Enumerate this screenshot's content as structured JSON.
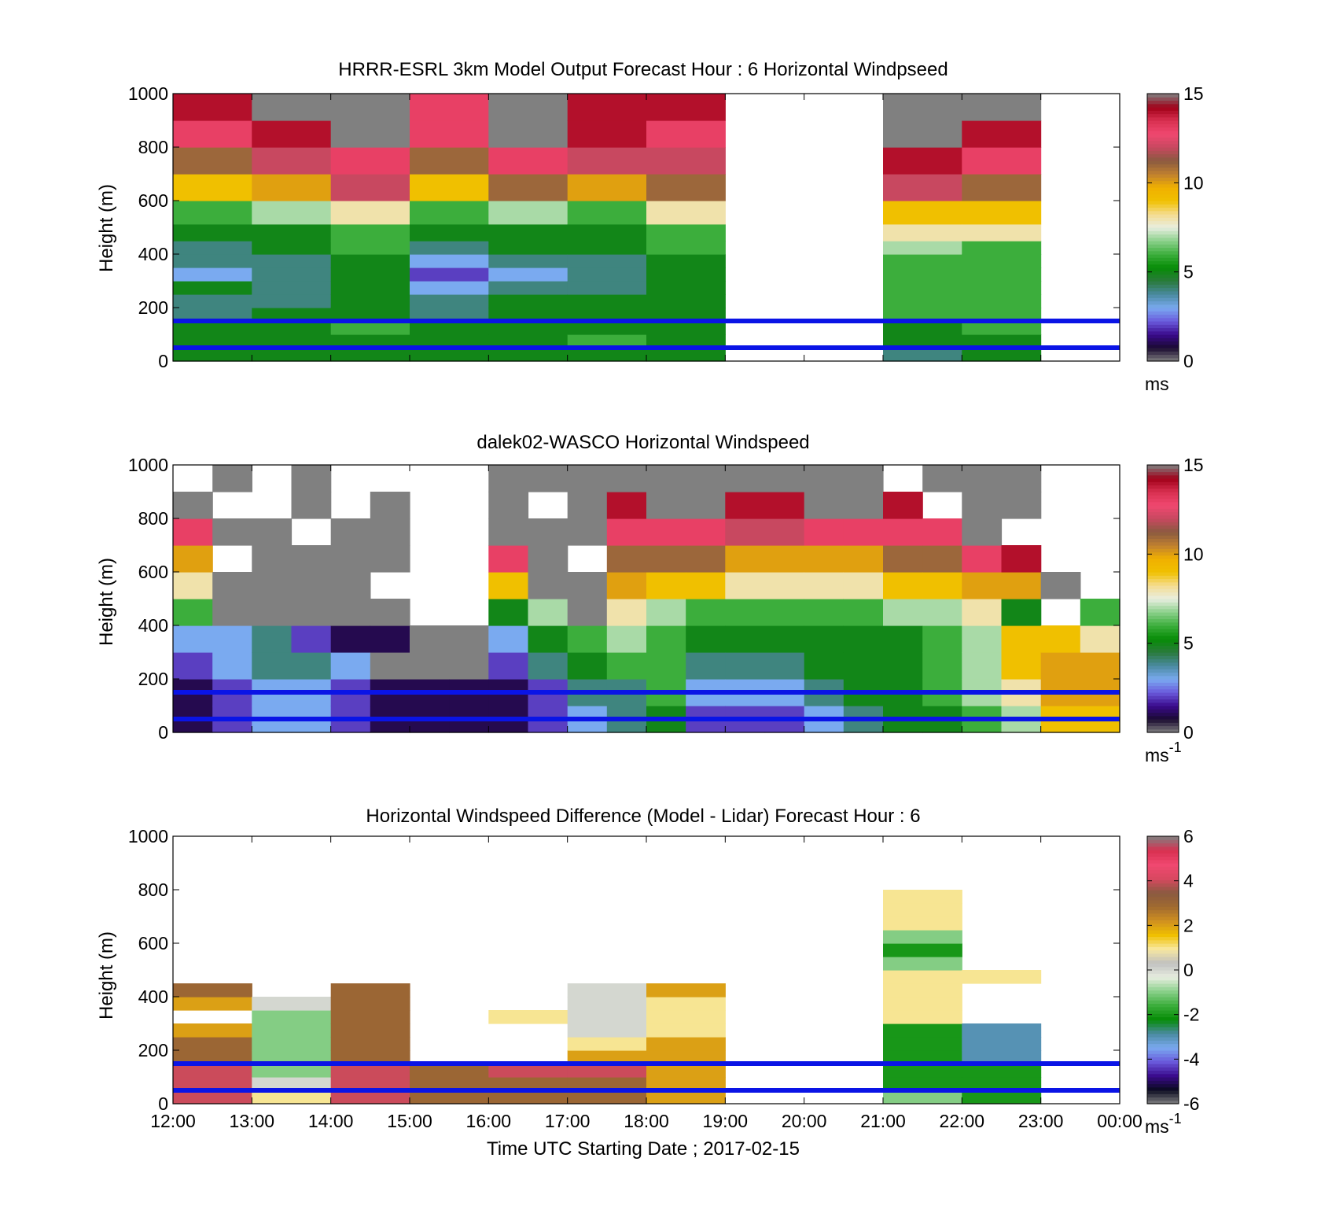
{
  "figure": {
    "xlabel": "Time UTC  Starting Date ; 2017-02-15",
    "x_tick_labels": [
      "12:00",
      "13:00",
      "14:00",
      "15:00",
      "16:00",
      "17:00",
      "18:00",
      "19:00",
      "20:00",
      "21:00",
      "22:00",
      "23:00",
      "00:00"
    ]
  },
  "colors": {
    "reference_lines": "#0a14e6",
    "speed_scale": [
      "#808080",
      "#1a0a30",
      "#3a0a8c",
      "#6a5adc",
      "#7aaaf0",
      "#4a8aa0",
      "#2a7a3c",
      "#068c06",
      "#3cae3c",
      "#8ad08a",
      "#e8eee0",
      "#f4dc90",
      "#f0c000",
      "#f0b000",
      "#c08030",
      "#8a5a40",
      "#c84860",
      "#f04870",
      "#d83050",
      "#a00018",
      "#808080"
    ],
    "diff_scale": [
      "#808080",
      "#0a0a20",
      "#3a0a8c",
      "#6a5adc",
      "#7aaaf0",
      "#4a8aa0",
      "#068c06",
      "#3cae3c",
      "#8ad08a",
      "#e8eee0",
      "#c0c0c0",
      "#f8e8a0",
      "#f0c000",
      "#d09020",
      "#a06a30",
      "#8a5a40",
      "#d84860",
      "#f04870",
      "#d83050",
      "#808080"
    ]
  },
  "chart_data": [
    {
      "type": "heatmap",
      "title": "HRRR-ESRL 3km Model Output   Forecast Hour : 6 Horizontal Windpseed",
      "ylabel": "Height (m)",
      "xlim": [
        "12:00",
        "00:00"
      ],
      "ylim": [
        0,
        1000
      ],
      "y_ticks": [
        0,
        200,
        400,
        600,
        800,
        1000
      ],
      "x_cells": [
        "12:00",
        "13:00",
        "14:00",
        "15:00",
        "16:00",
        "17:00",
        "18:00",
        "19:00",
        "20:00",
        "21:00",
        "22:00",
        "23:00"
      ],
      "heights_m": [
        25,
        75,
        125,
        175,
        225,
        275,
        325,
        375,
        425,
        475,
        550,
        650,
        750,
        850,
        950
      ],
      "values": [
        [
          5,
          5,
          5,
          4,
          4,
          5,
          3,
          4,
          4,
          5,
          6,
          9,
          11,
          13,
          14
        ],
        [
          5,
          5,
          5,
          5,
          4,
          4,
          4,
          4,
          5,
          5,
          7,
          10,
          12,
          14,
          15
        ],
        [
          5,
          5,
          6,
          5,
          5,
          5,
          5,
          5,
          6,
          6,
          8,
          12,
          13,
          15,
          15
        ],
        [
          5,
          5,
          5,
          4,
          4,
          3,
          2,
          3,
          4,
          5,
          6,
          9,
          11,
          13,
          13
        ],
        [
          5,
          5,
          5,
          5,
          5,
          4,
          3,
          4,
          5,
          5,
          7,
          11,
          13,
          15,
          15
        ],
        [
          5,
          6,
          5,
          5,
          5,
          4,
          4,
          4,
          5,
          5,
          6,
          10,
          12,
          14,
          14
        ],
        [
          5,
          5,
          5,
          5,
          5,
          5,
          5,
          5,
          6,
          6,
          8,
          11,
          12,
          13,
          14
        ],
        [
          null,
          null,
          null,
          null,
          null,
          null,
          null,
          null,
          null,
          null,
          null,
          null,
          null,
          null,
          null
        ],
        [
          null,
          null,
          null,
          null,
          null,
          null,
          null,
          null,
          null,
          null,
          null,
          null,
          null,
          null,
          null
        ],
        [
          4,
          5,
          5,
          6,
          6,
          6,
          6,
          6,
          7,
          8,
          9,
          12,
          14,
          15,
          15
        ],
        [
          5,
          5,
          6,
          6,
          6,
          6,
          6,
          6,
          6,
          8,
          9,
          11,
          13,
          14,
          15
        ],
        [
          null,
          null,
          null,
          null,
          null,
          null,
          null,
          null,
          null,
          null,
          null,
          null,
          null,
          null,
          null
        ]
      ],
      "reference_lines_m": [
        50,
        150
      ],
      "colorbar": {
        "min": 0,
        "max": 15,
        "ticks": [
          0,
          5,
          10,
          15
        ],
        "unit": "ms"
      }
    },
    {
      "type": "heatmap",
      "title": "dalek02-WASCO  Horizontal Windspeed",
      "ylabel": "Height (m)",
      "xlim": [
        "12:00",
        "00:00"
      ],
      "ylim": [
        0,
        1000
      ],
      "y_ticks": [
        0,
        200,
        400,
        600,
        800,
        1000
      ],
      "x_cells": [
        "12:00",
        "12:30",
        "13:00",
        "13:30",
        "14:00",
        "14:30",
        "15:00",
        "15:30",
        "16:00",
        "16:30",
        "17:00",
        "17:30",
        "18:00",
        "18:30",
        "19:00",
        "19:30",
        "20:00",
        "20:30",
        "21:00",
        "21:30",
        "22:00",
        "22:30",
        "23:00",
        "23:30"
      ],
      "heights_m": [
        50,
        150,
        250,
        350,
        450,
        550,
        650,
        750,
        850,
        950
      ],
      "values": [
        [
          1,
          1,
          2,
          3,
          6,
          8,
          10,
          13,
          15,
          null
        ],
        [
          2,
          2,
          3,
          3,
          15,
          15,
          null,
          15,
          null,
          15
        ],
        [
          3,
          3,
          4,
          4,
          15,
          15,
          15,
          15,
          null,
          null
        ],
        [
          3,
          3,
          4,
          2,
          15,
          15,
          15,
          null,
          15,
          15
        ],
        [
          2,
          2,
          3,
          1,
          15,
          15,
          15,
          15,
          null,
          null
        ],
        [
          1,
          1,
          0,
          1,
          15,
          null,
          15,
          15,
          15,
          null
        ],
        [
          1,
          1,
          0,
          0,
          null,
          null,
          null,
          null,
          null,
          null
        ],
        [
          1,
          1,
          0,
          0,
          null,
          null,
          null,
          null,
          null,
          null
        ],
        [
          1,
          1,
          2,
          3,
          5,
          9,
          13,
          15,
          15,
          15
        ],
        [
          2,
          2,
          4,
          5,
          7,
          15,
          15,
          15,
          null,
          15
        ],
        [
          3,
          4,
          5,
          6,
          15,
          15,
          null,
          15,
          15,
          15
        ],
        [
          4,
          4,
          6,
          7,
          8,
          10,
          11,
          13,
          14,
          15
        ],
        [
          5,
          6,
          6,
          6,
          7,
          9,
          11,
          13,
          15,
          15
        ],
        [
          2,
          3,
          4,
          5,
          6,
          9,
          11,
          13,
          15,
          15
        ],
        [
          2,
          3,
          4,
          5,
          6,
          8,
          10,
          12,
          14,
          15
        ],
        [
          2,
          3,
          4,
          5,
          6,
          8,
          10,
          12,
          14,
          15
        ],
        [
          3,
          4,
          5,
          5,
          6,
          8,
          10,
          13,
          15,
          15
        ],
        [
          4,
          5,
          5,
          5,
          6,
          8,
          10,
          13,
          15,
          15
        ],
        [
          5,
          5,
          5,
          5,
          7,
          9,
          11,
          13,
          14,
          null
        ],
        [
          5,
          6,
          6,
          6,
          7,
          9,
          11,
          13,
          null,
          15
        ],
        [
          6,
          7,
          7,
          7,
          8,
          10,
          13,
          15,
          15,
          15
        ],
        [
          7,
          8,
          9,
          9,
          5,
          10,
          14,
          null,
          15,
          15
        ],
        [
          9,
          10,
          10,
          9,
          null,
          15,
          null,
          null,
          null,
          null
        ],
        [
          9,
          10,
          10,
          8,
          6,
          null,
          null,
          null,
          null,
          null
        ]
      ],
      "reference_lines_m": [
        50,
        150
      ],
      "colorbar": {
        "min": 0,
        "max": 15,
        "ticks": [
          0,
          5,
          10,
          15
        ],
        "unit": "ms",
        "unit_exponent": "-1"
      }
    },
    {
      "type": "heatmap",
      "title": "Horizontal Windspeed Difference (Model - Lidar) Forecast Hour : 6",
      "ylabel": "Height (m)",
      "xlim": [
        "12:00",
        "00:00"
      ],
      "ylim": [
        0,
        1000
      ],
      "y_ticks": [
        0,
        200,
        400,
        600,
        800,
        1000
      ],
      "x_cells": [
        "12:00",
        "13:00",
        "14:00",
        "15:00",
        "16:00",
        "17:00",
        "18:00",
        "19:00",
        "20:00",
        "21:00",
        "22:00",
        "23:00"
      ],
      "heights_m": [
        25,
        75,
        125,
        175,
        225,
        275,
        325,
        375,
        425,
        475,
        525,
        575,
        625,
        675,
        725,
        775
      ],
      "values": [
        [
          4,
          4,
          4,
          3,
          3,
          2,
          null,
          2,
          3,
          null,
          null,
          null,
          null,
          null,
          null,
          null
        ],
        [
          1,
          0,
          -1,
          -1,
          -1,
          -1,
          -1,
          0,
          null,
          null,
          null,
          null,
          null,
          null,
          null,
          null
        ],
        [
          4,
          4,
          4,
          3,
          3,
          3,
          3,
          3,
          3,
          null,
          null,
          null,
          null,
          null,
          null,
          null
        ],
        [
          3,
          3,
          3,
          null,
          null,
          null,
          null,
          null,
          null,
          null,
          null,
          null,
          null,
          null,
          null,
          null
        ],
        [
          3,
          3,
          4,
          null,
          null,
          null,
          1,
          null,
          null,
          null,
          null,
          null,
          null,
          null,
          null,
          null
        ],
        [
          3,
          3,
          4,
          2,
          1,
          0,
          0,
          0,
          0,
          null,
          null,
          null,
          null,
          null,
          null,
          null
        ],
        [
          2,
          2,
          2,
          2,
          2,
          1,
          1,
          1,
          2,
          null,
          null,
          null,
          null,
          null,
          null,
          null
        ],
        [
          null,
          null,
          null,
          null,
          null,
          null,
          null,
          null,
          null,
          null,
          null,
          null,
          null,
          null,
          null,
          null
        ],
        [
          null,
          null,
          null,
          null,
          null,
          null,
          null,
          null,
          null,
          null,
          null,
          null,
          null,
          null,
          null,
          null
        ],
        [
          -1,
          -2,
          -2,
          -2,
          -2,
          -2,
          1,
          1,
          1,
          1,
          -1,
          -2,
          -1,
          1,
          1,
          1
        ],
        [
          -2,
          -2,
          -2,
          -3,
          -3,
          -3,
          null,
          null,
          null,
          1,
          null,
          null,
          null,
          null,
          null,
          null
        ],
        [
          null,
          null,
          null,
          null,
          null,
          null,
          null,
          null,
          null,
          null,
          null,
          null,
          null,
          null,
          null,
          null
        ]
      ],
      "reference_lines_m": [
        50,
        150
      ],
      "colorbar": {
        "min": -6,
        "max": 6,
        "ticks": [
          -6,
          -4,
          -2,
          0,
          2,
          4,
          6
        ],
        "unit": "ms",
        "unit_exponent": "-1"
      }
    }
  ]
}
